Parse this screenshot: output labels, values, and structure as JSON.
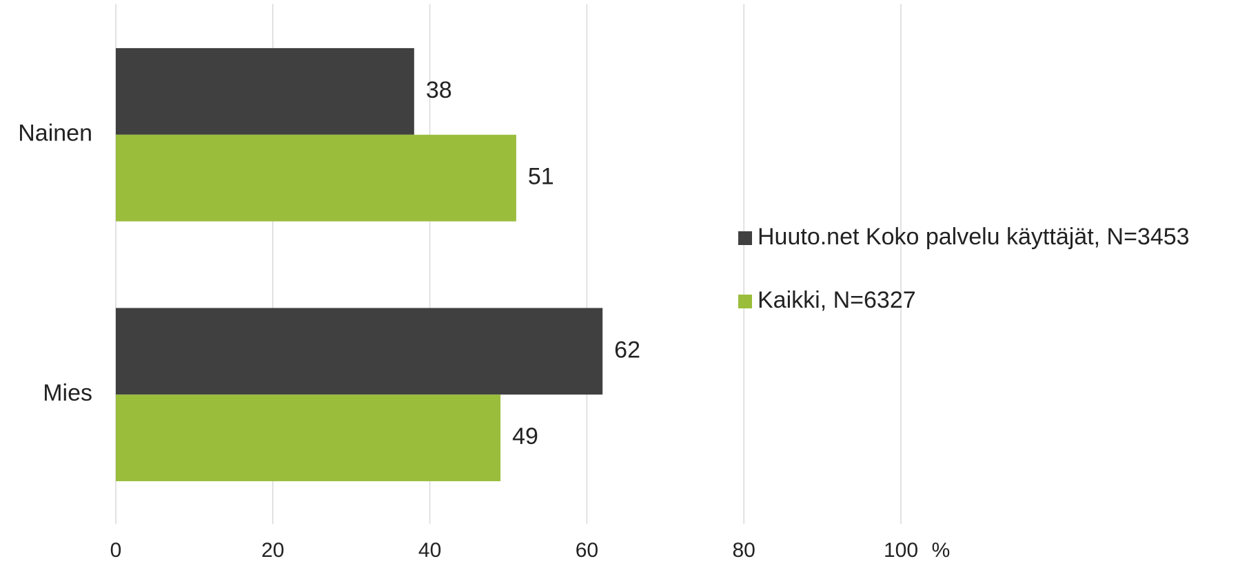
{
  "chart_data": {
    "type": "barh",
    "categories": [
      "Nainen",
      "Mies"
    ],
    "series": [
      {
        "name": "Huuto.net Koko palvelu käyttäjät, N=3453",
        "color": "#404040",
        "values": [
          38,
          62
        ]
      },
      {
        "name": "Kaikki, N=6327",
        "color": "#9abd3c",
        "values": [
          51,
          49
        ]
      }
    ],
    "xlim": [
      0,
      100
    ],
    "xticks": [
      0,
      20,
      40,
      60,
      80,
      100
    ],
    "xlabel": "%",
    "grid": true,
    "legend": "right"
  }
}
